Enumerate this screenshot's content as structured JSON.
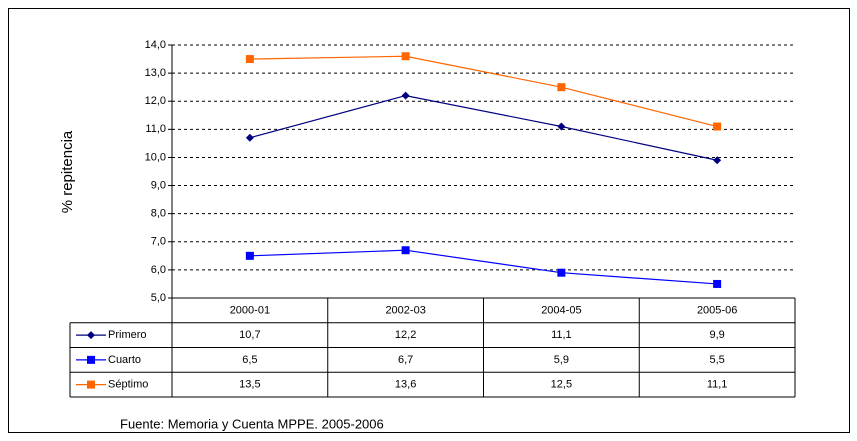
{
  "chart_data": {
    "type": "line",
    "categories": [
      "2000-01",
      "2002-03",
      "2004-05",
      "2005-06"
    ],
    "series": [
      {
        "name": "Primero",
        "color": "#000080",
        "marker": "diamond",
        "values": [
          10.7,
          12.2,
          11.1,
          9.9
        ],
        "value_labels": [
          "10,7",
          "12,2",
          "11,1",
          "9,9"
        ]
      },
      {
        "name": "Cuarto",
        "color": "#0000ff",
        "marker": "square",
        "values": [
          6.5,
          6.7,
          5.9,
          5.5
        ],
        "value_labels": [
          "6,5",
          "6,7",
          "5,9",
          "5,5"
        ]
      },
      {
        "name": "Séptimo",
        "color": "#ff6600",
        "marker": "square",
        "values": [
          13.5,
          13.6,
          12.5,
          11.1
        ],
        "value_labels": [
          "13,5",
          "13,6",
          "12,5",
          "11,1"
        ]
      }
    ],
    "ylabel": "% repitencia",
    "ylim": [
      5,
      14
    ],
    "yticks": [
      {
        "value": 5,
        "label": "5,0"
      },
      {
        "value": 6,
        "label": "6,0"
      },
      {
        "value": 7,
        "label": "7,0"
      },
      {
        "value": 8,
        "label": "8,0"
      },
      {
        "value": 9,
        "label": "9,0"
      },
      {
        "value": 10,
        "label": "10,0"
      },
      {
        "value": 11,
        "label": "11,0"
      },
      {
        "value": 12,
        "label": "12,0"
      },
      {
        "value": 13,
        "label": "13,0"
      },
      {
        "value": 14,
        "label": "14,0"
      }
    ],
    "grid": true,
    "source": "Fuente: Memoria y Cuenta MPPE. 2005-2006"
  }
}
